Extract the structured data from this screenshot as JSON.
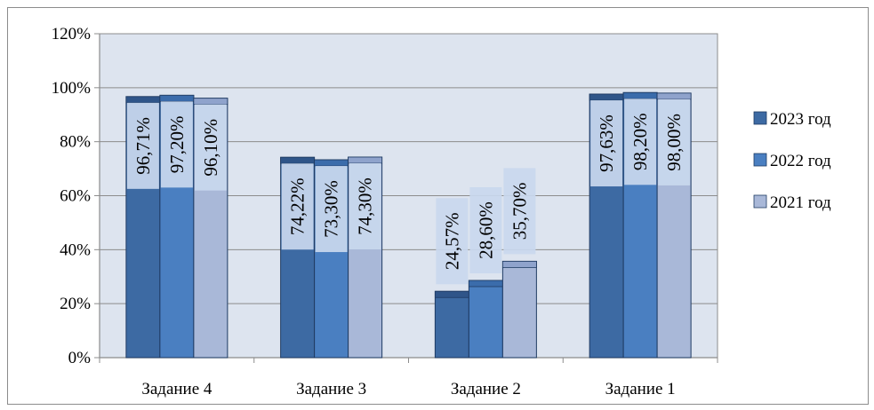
{
  "chart_data": {
    "type": "bar",
    "categories": [
      "Задание 4",
      "Задание 3",
      "Задание 2",
      "Задание 1"
    ],
    "series": [
      {
        "name": "2023 год",
        "values": [
          96.71,
          74.22,
          24.57,
          97.63
        ],
        "labels": [
          "96,71%",
          "74,22%",
          "24,57%",
          "97,63%"
        ]
      },
      {
        "name": "2022 год",
        "values": [
          97.2,
          73.3,
          28.6,
          98.2
        ],
        "labels": [
          "97,20%",
          "73,30%",
          "28,60%",
          "98,20%"
        ]
      },
      {
        "name": "2021 год",
        "values": [
          96.1,
          74.3,
          35.7,
          98.0
        ],
        "labels": [
          "96,10%",
          "74,30%",
          "35,70%",
          "98,00%"
        ]
      }
    ],
    "ylim": [
      0,
      120
    ],
    "yticks": [
      "0%",
      "20%",
      "40%",
      "60%",
      "80%",
      "100%",
      "120%"
    ],
    "grid": true,
    "legend_position": "right",
    "colors": {
      "series": [
        "#3d6aa3",
        "#4a7fc1",
        "#a9b8d8"
      ],
      "series_top": [
        "#2f5589",
        "#3b6cab",
        "#8fa3cc"
      ],
      "plot_bg": "#dde4ef",
      "label_bg": "#c9d8ee",
      "grid": "#8c8c8c"
    }
  }
}
